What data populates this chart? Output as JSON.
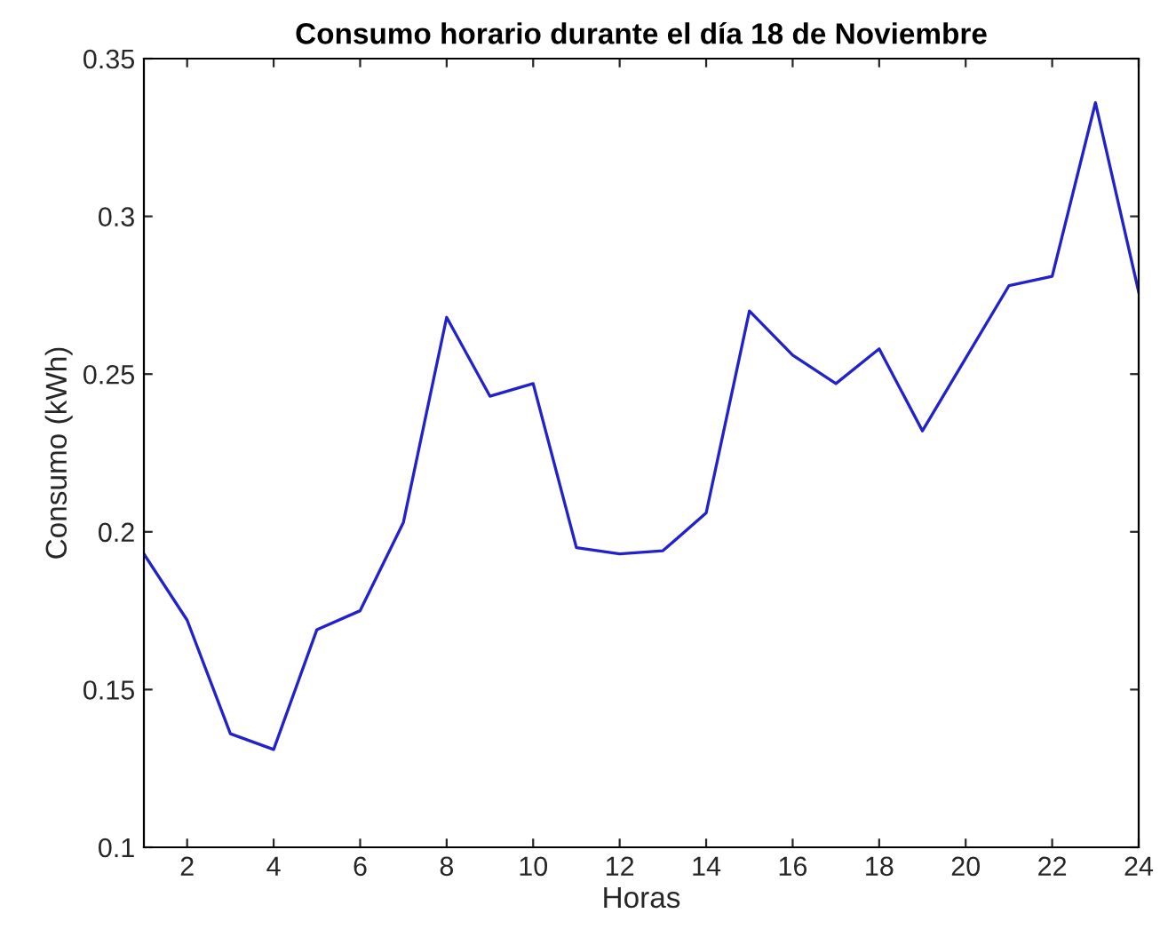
{
  "chart_data": {
    "type": "line",
    "title": "Consumo horario durante el día 18 de Noviembre",
    "xlabel": "Horas",
    "ylabel": "Consumo (kWh)",
    "x": [
      1,
      2,
      3,
      4,
      5,
      6,
      7,
      8,
      9,
      10,
      11,
      12,
      13,
      14,
      15,
      16,
      17,
      18,
      19,
      20,
      21,
      22,
      23,
      24
    ],
    "series": [
      {
        "color": "#2222cc",
        "values": [
          0.193,
          0.172,
          0.136,
          0.131,
          0.169,
          0.175,
          0.203,
          0.268,
          0.243,
          0.247,
          0.195,
          0.193,
          0.194,
          0.206,
          0.27,
          0.256,
          0.247,
          0.258,
          0.232,
          0.255,
          0.278,
          0.281,
          0.336,
          0.276
        ]
      }
    ],
    "xlim": [
      1,
      24
    ],
    "xticks": [
      2,
      4,
      6,
      8,
      10,
      12,
      14,
      16,
      18,
      20,
      22,
      24
    ],
    "ylim": [
      0.1,
      0.35
    ],
    "yticks": [
      0.1,
      0.15,
      0.2,
      0.25,
      0.3,
      0.35
    ],
    "grid": false,
    "legend": false,
    "marker": "none",
    "line_style": "solid"
  }
}
